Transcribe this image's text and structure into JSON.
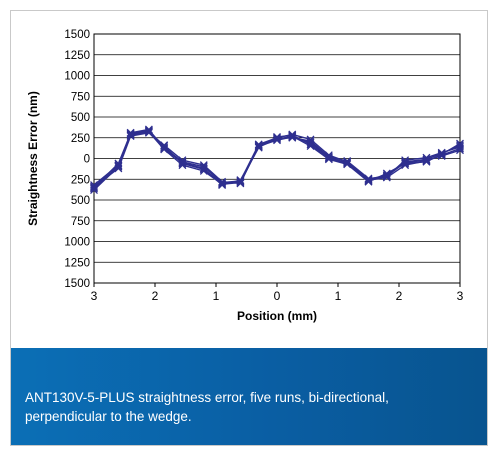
{
  "chart_data": {
    "type": "line",
    "title": "",
    "xlabel": "Position (mm)",
    "ylabel": "Straightness Error (nm)",
    "xlim": [
      -3,
      3
    ],
    "ylim": [
      -1500,
      1500
    ],
    "x_tick_labels": [
      "3",
      "2",
      "1",
      "0",
      "1",
      "2",
      "3"
    ],
    "x_tick_values": [
      -3,
      -2,
      -1,
      0,
      1,
      2,
      3
    ],
    "y_tick_labels": [
      "1500",
      "1250",
      "1000",
      "750",
      "500",
      "250",
      "0",
      "250",
      "500",
      "750",
      "1000",
      "1250",
      "1500"
    ],
    "y_tick_values": [
      1500,
      1250,
      1000,
      750,
      500,
      250,
      0,
      -250,
      -500,
      -750,
      -1000,
      -1250,
      -1500
    ],
    "grid": "horizontal",
    "line_color": "#2e2f8f",
    "x": [
      -3.0,
      -2.6,
      -2.4,
      -2.1,
      -1.85,
      -1.55,
      -1.2,
      -0.9,
      -0.6,
      -0.3,
      0.0,
      0.25,
      0.55,
      0.85,
      1.15,
      1.5,
      1.8,
      2.1,
      2.45,
      2.7,
      3.0
    ],
    "series": [
      {
        "values": [
          -380,
          -100,
          290,
          330,
          150,
          -60,
          -130,
          -300,
          -280,
          150,
          220,
          260,
          190,
          10,
          -50,
          -260,
          -230,
          -80,
          -30,
          40,
          120
        ]
      },
      {
        "values": [
          -350,
          -60,
          300,
          340,
          130,
          -40,
          -100,
          -290,
          -270,
          170,
          250,
          290,
          230,
          40,
          -40,
          -250,
          -200,
          -40,
          -10,
          60,
          160
        ]
      },
      {
        "values": [
          -320,
          -80,
          280,
          320,
          110,
          -80,
          -150,
          -310,
          -290,
          140,
          230,
          270,
          150,
          -10,
          -70,
          -280,
          -180,
          -60,
          -40,
          50,
          180
        ]
      },
      {
        "values": [
          -340,
          -120,
          270,
          310,
          160,
          -20,
          -80,
          -280,
          -300,
          160,
          240,
          250,
          210,
          20,
          -30,
          -240,
          -220,
          -20,
          10,
          70,
          140
        ]
      },
      {
        "values": [
          -360,
          -90,
          310,
          350,
          120,
          -50,
          -120,
          -320,
          -260,
          130,
          260,
          280,
          170,
          0,
          -60,
          -270,
          -210,
          -50,
          -20,
          30,
          100
        ]
      }
    ]
  },
  "caption": {
    "line1": "ANT130V-5-PLUS straightness error, five runs, bi-directional,",
    "line2": "perpendicular to the wedge."
  }
}
